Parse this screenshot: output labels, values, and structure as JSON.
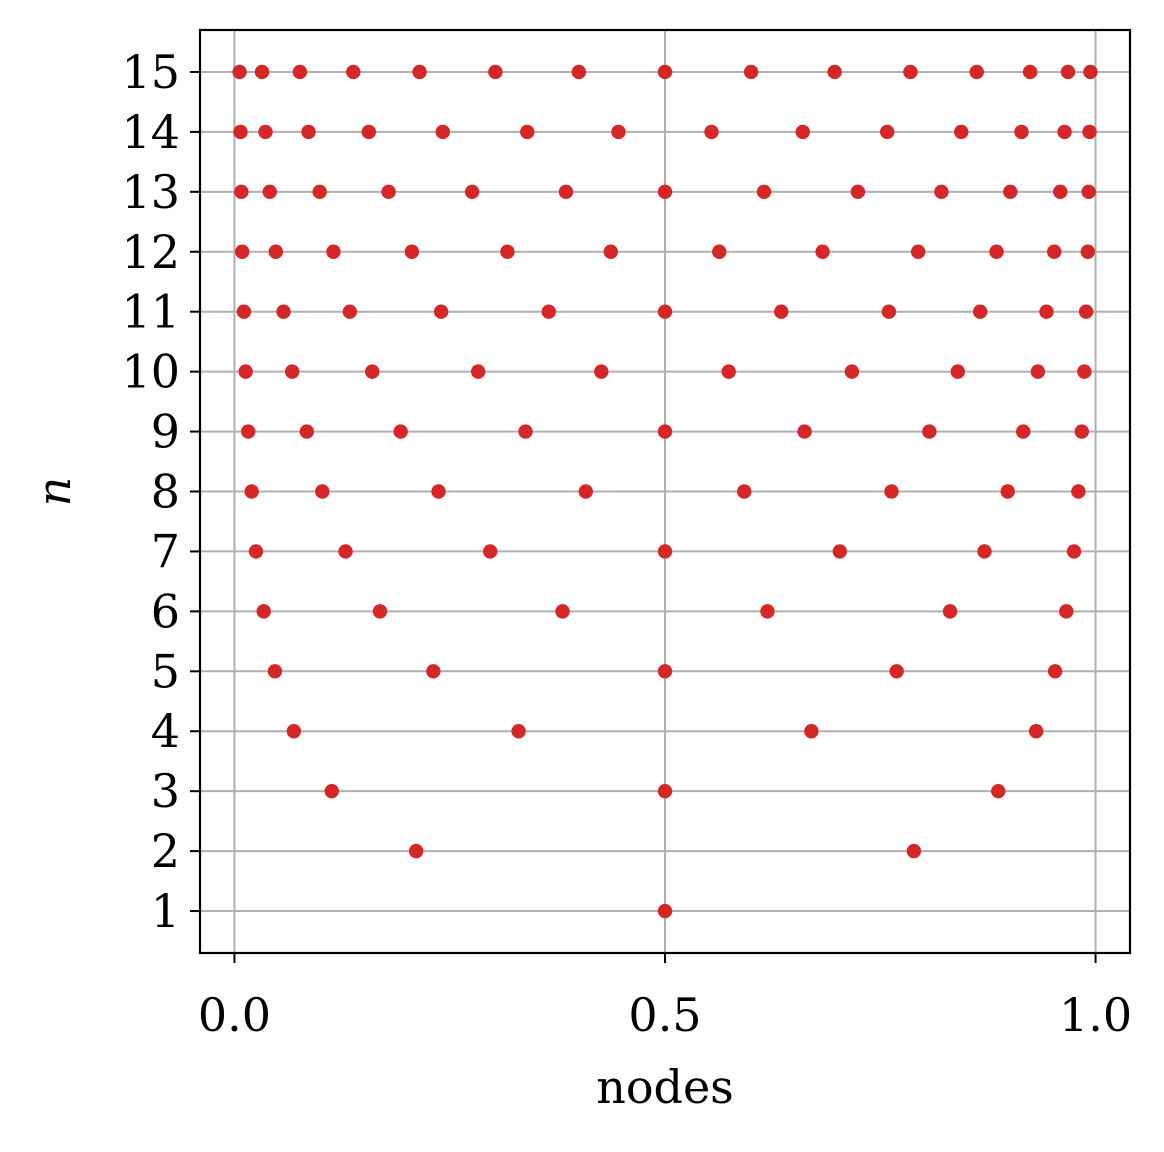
{
  "chart_data": {
    "type": "scatter",
    "title": "",
    "xlabel": "nodes",
    "ylabel": "n",
    "xlim": [
      -0.04,
      1.04
    ],
    "ylim": [
      0.3,
      15.7
    ],
    "xticks": [
      0.0,
      0.5,
      1.0
    ],
    "xtick_labels": [
      "0.0",
      "0.5",
      "1.0"
    ],
    "yticks": [
      1,
      2,
      3,
      4,
      5,
      6,
      7,
      8,
      9,
      10,
      11,
      12,
      13,
      14,
      15
    ],
    "ytick_labels": [
      "1",
      "2",
      "3",
      "4",
      "5",
      "6",
      "7",
      "8",
      "9",
      "10",
      "11",
      "12",
      "13",
      "14",
      "15"
    ],
    "grid": true,
    "colors": {
      "points": "#d62728",
      "grid": "#b0b0b0",
      "axes": "#000000"
    },
    "series": [
      {
        "points": [
          [
            0.5,
            1
          ],
          [
            0.211,
            2
          ],
          [
            0.789,
            2
          ],
          [
            0.113,
            3
          ],
          [
            0.5,
            3
          ],
          [
            0.887,
            3
          ],
          [
            0.069,
            4
          ],
          [
            0.33,
            4
          ],
          [
            0.67,
            4
          ],
          [
            0.931,
            4
          ],
          [
            0.047,
            5
          ],
          [
            0.231,
            5
          ],
          [
            0.5,
            5
          ],
          [
            0.769,
            5
          ],
          [
            0.953,
            5
          ],
          [
            0.034,
            6
          ],
          [
            0.169,
            6
          ],
          [
            0.381,
            6
          ],
          [
            0.619,
            6
          ],
          [
            0.831,
            6
          ],
          [
            0.966,
            6
          ],
          [
            0.025,
            7
          ],
          [
            0.129,
            7
          ],
          [
            0.297,
            7
          ],
          [
            0.5,
            7
          ],
          [
            0.703,
            7
          ],
          [
            0.871,
            7
          ],
          [
            0.975,
            7
          ],
          [
            0.02,
            8
          ],
          [
            0.102,
            8
          ],
          [
            0.237,
            8
          ],
          [
            0.408,
            8
          ],
          [
            0.592,
            8
          ],
          [
            0.763,
            8
          ],
          [
            0.898,
            8
          ],
          [
            0.98,
            8
          ],
          [
            0.016,
            9
          ],
          [
            0.084,
            9
          ],
          [
            0.193,
            9
          ],
          [
            0.338,
            9
          ],
          [
            0.5,
            9
          ],
          [
            0.662,
            9
          ],
          [
            0.807,
            9
          ],
          [
            0.916,
            9
          ],
          [
            0.984,
            9
          ],
          [
            0.013,
            10
          ],
          [
            0.067,
            10
          ],
          [
            0.16,
            10
          ],
          [
            0.283,
            10
          ],
          [
            0.426,
            10
          ],
          [
            0.574,
            10
          ],
          [
            0.717,
            10
          ],
          [
            0.84,
            10
          ],
          [
            0.933,
            10
          ],
          [
            0.987,
            10
          ],
          [
            0.011,
            11
          ],
          [
            0.057,
            11
          ],
          [
            0.134,
            11
          ],
          [
            0.24,
            11
          ],
          [
            0.365,
            11
          ],
          [
            0.5,
            11
          ],
          [
            0.635,
            11
          ],
          [
            0.76,
            11
          ],
          [
            0.866,
            11
          ],
          [
            0.943,
            11
          ],
          [
            0.989,
            11
          ],
          [
            0.009,
            12
          ],
          [
            0.048,
            12
          ],
          [
            0.115,
            12
          ],
          [
            0.206,
            12
          ],
          [
            0.317,
            12
          ],
          [
            0.437,
            12
          ],
          [
            0.563,
            12
          ],
          [
            0.683,
            12
          ],
          [
            0.794,
            12
          ],
          [
            0.885,
            12
          ],
          [
            0.952,
            12
          ],
          [
            0.991,
            12
          ],
          [
            0.008,
            13
          ],
          [
            0.041,
            13
          ],
          [
            0.099,
            13
          ],
          [
            0.179,
            13
          ],
          [
            0.276,
            13
          ],
          [
            0.385,
            13
          ],
          [
            0.5,
            13
          ],
          [
            0.615,
            13
          ],
          [
            0.724,
            13
          ],
          [
            0.821,
            13
          ],
          [
            0.901,
            13
          ],
          [
            0.959,
            13
          ],
          [
            0.992,
            13
          ],
          [
            0.007,
            14
          ],
          [
            0.036,
            14
          ],
          [
            0.086,
            14
          ],
          [
            0.156,
            14
          ],
          [
            0.242,
            14
          ],
          [
            0.34,
            14
          ],
          [
            0.446,
            14
          ],
          [
            0.554,
            14
          ],
          [
            0.66,
            14
          ],
          [
            0.758,
            14
          ],
          [
            0.844,
            14
          ],
          [
            0.914,
            14
          ],
          [
            0.964,
            14
          ],
          [
            0.993,
            14
          ],
          [
            0.006,
            15
          ],
          [
            0.032,
            15
          ],
          [
            0.076,
            15
          ],
          [
            0.138,
            15
          ],
          [
            0.215,
            15
          ],
          [
            0.303,
            15
          ],
          [
            0.4,
            15
          ],
          [
            0.5,
            15
          ],
          [
            0.6,
            15
          ],
          [
            0.697,
            15
          ],
          [
            0.785,
            15
          ],
          [
            0.862,
            15
          ],
          [
            0.924,
            15
          ],
          [
            0.968,
            15
          ],
          [
            0.994,
            15
          ]
        ]
      }
    ]
  }
}
